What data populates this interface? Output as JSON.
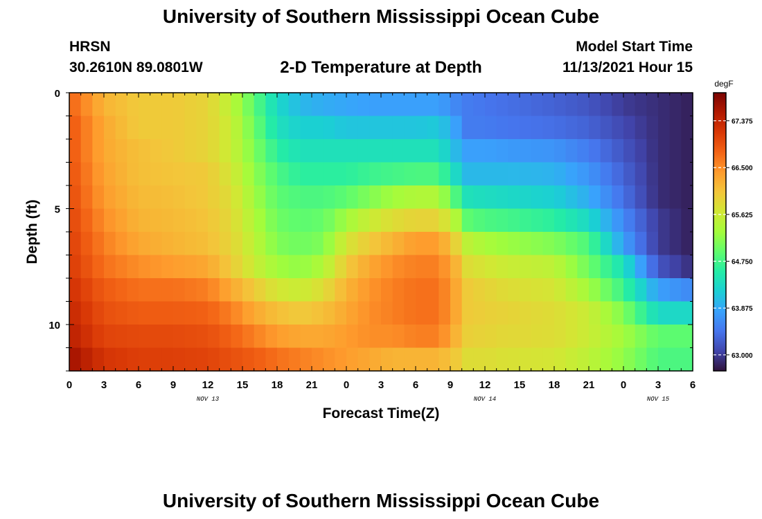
{
  "page": {
    "title": "University of Southern Mississippi Ocean Cube",
    "station": "HRSN",
    "coordinates": "30.2610N  89.0801W",
    "subtitle": "2-D Temperature at Depth",
    "model_start_label": "Model Start Time",
    "model_start_value": "11/13/2021 Hour 15",
    "footer_title": "University of Southern Mississippi Ocean Cube"
  },
  "chart_data": {
    "type": "heatmap",
    "title": "2-D Temperature at Depth",
    "xlabel": "Forecast Time(Z)",
    "ylabel": "Depth (ft)",
    "x_tick_labels": [
      "0",
      "3",
      "6",
      "9",
      "12",
      "15",
      "18",
      "21",
      "0",
      "3",
      "6",
      "9",
      "12",
      "15",
      "18",
      "21",
      "0",
      "3",
      "6"
    ],
    "x_range_hours": [
      0,
      54
    ],
    "date_labels": [
      {
        "hour": 12,
        "label": "NOV 13"
      },
      {
        "hour": 36,
        "label": "NOV 14"
      },
      {
        "hour": 51,
        "label": "NOV 15"
      }
    ],
    "y_tick_labels": [
      "0",
      "5",
      "10"
    ],
    "y_range_ft": [
      0,
      12
    ],
    "colorbar": {
      "unit": "degF",
      "range": [
        62.7,
        67.9
      ],
      "tick_labels": [
        "67.375",
        "66.500",
        "65.625",
        "64.750",
        "63.875",
        "63.000"
      ],
      "tick_values": [
        67.375,
        66.5,
        65.625,
        64.75,
        63.875,
        63.0
      ]
    },
    "colormap": [
      "#30123b",
      "#4145ab",
      "#4675ed",
      "#39a2fc",
      "#1bcfd4",
      "#24eca6",
      "#61fc6c",
      "#a4fc3b",
      "#d1e834",
      "#f3c63a",
      "#fe9b2d",
      "#f36315",
      "#d93806",
      "#b11901",
      "#7a0402"
    ],
    "depth_levels_ft": [
      0.5,
      1.5,
      2.5,
      3.5,
      4.5,
      5.5,
      6.5,
      7.5,
      8.5,
      9.5,
      10.5,
      11.5
    ],
    "temperature_keyframes": {
      "hours": [
        0,
        3,
        6,
        9,
        12,
        14,
        16,
        18,
        20,
        22,
        24,
        26,
        28,
        30,
        32,
        33.5,
        34.5,
        36,
        38,
        42,
        45,
        48,
        51,
        54
      ],
      "rows": [
        [
          66.8,
          66.2,
          66.0,
          66.0,
          65.9,
          65.5,
          64.9,
          64.3,
          64.0,
          63.9,
          63.85,
          63.8,
          63.8,
          63.8,
          63.8,
          63.6,
          63.5,
          63.45,
          63.4,
          63.3,
          63.2,
          63.0,
          62.9,
          62.8
        ],
        [
          66.9,
          66.3,
          66.0,
          66.0,
          65.9,
          65.6,
          65.0,
          64.4,
          64.2,
          64.2,
          64.1,
          64.1,
          64.1,
          64.1,
          64.15,
          63.8,
          63.5,
          63.5,
          63.45,
          63.4,
          63.3,
          63.1,
          62.9,
          62.8
        ],
        [
          66.9,
          66.3,
          66.1,
          66.0,
          65.9,
          65.6,
          65.1,
          64.6,
          64.4,
          64.4,
          64.4,
          64.4,
          64.4,
          64.4,
          64.4,
          64.0,
          63.8,
          63.8,
          63.75,
          63.7,
          63.5,
          63.2,
          62.9,
          62.8
        ],
        [
          66.95,
          66.35,
          66.1,
          66.05,
          66.0,
          65.7,
          65.2,
          64.8,
          64.6,
          64.6,
          64.6,
          64.7,
          64.75,
          64.8,
          64.8,
          64.3,
          64.0,
          64.0,
          64.0,
          63.95,
          63.7,
          63.3,
          62.9,
          62.8
        ],
        [
          67.0,
          66.4,
          66.15,
          66.1,
          66.0,
          65.8,
          65.3,
          64.9,
          64.8,
          64.8,
          64.9,
          65.1,
          65.3,
          65.4,
          65.4,
          64.8,
          64.4,
          64.35,
          64.3,
          64.2,
          63.9,
          63.4,
          62.9,
          62.8
        ],
        [
          67.05,
          66.5,
          66.2,
          66.15,
          66.05,
          65.85,
          65.4,
          65.0,
          64.9,
          64.95,
          65.3,
          65.6,
          65.8,
          65.9,
          65.9,
          65.4,
          64.9,
          64.8,
          64.75,
          64.6,
          64.3,
          63.6,
          63.0,
          62.8
        ],
        [
          67.1,
          66.6,
          66.3,
          66.2,
          66.1,
          65.9,
          65.5,
          65.1,
          65.0,
          65.1,
          65.7,
          66.0,
          66.2,
          66.4,
          66.4,
          65.9,
          65.5,
          65.35,
          65.25,
          65.1,
          64.8,
          63.8,
          63.0,
          62.8
        ],
        [
          67.15,
          66.7,
          66.5,
          66.4,
          66.3,
          66.0,
          65.6,
          65.3,
          65.2,
          65.4,
          66.0,
          66.3,
          66.5,
          66.6,
          66.6,
          66.2,
          65.8,
          65.7,
          65.6,
          65.5,
          65.0,
          64.4,
          63.2,
          62.9
        ],
        [
          67.25,
          66.85,
          66.7,
          66.7,
          66.6,
          66.3,
          66.0,
          65.7,
          65.6,
          65.8,
          66.2,
          66.45,
          66.6,
          66.7,
          66.7,
          66.3,
          66.0,
          65.9,
          65.8,
          65.7,
          65.3,
          64.7,
          63.8,
          63.6
        ],
        [
          67.35,
          66.95,
          66.85,
          66.85,
          66.8,
          66.6,
          66.3,
          66.1,
          66.0,
          66.1,
          66.3,
          66.5,
          66.6,
          66.7,
          66.7,
          66.3,
          66.0,
          65.95,
          65.9,
          65.8,
          65.6,
          65.1,
          64.3,
          64.3
        ],
        [
          67.45,
          67.05,
          67.0,
          67.0,
          66.95,
          66.8,
          66.6,
          66.4,
          66.3,
          66.3,
          66.4,
          66.5,
          66.5,
          66.6,
          66.6,
          66.2,
          65.95,
          65.9,
          65.85,
          65.8,
          65.6,
          65.3,
          64.9,
          64.9
        ],
        [
          67.65,
          67.2,
          67.1,
          67.1,
          67.05,
          66.95,
          66.85,
          66.7,
          66.6,
          66.5,
          66.4,
          66.3,
          66.2,
          66.2,
          66.2,
          66.0,
          65.8,
          65.8,
          65.75,
          65.7,
          65.5,
          65.2,
          64.8,
          64.8
        ]
      ]
    }
  }
}
